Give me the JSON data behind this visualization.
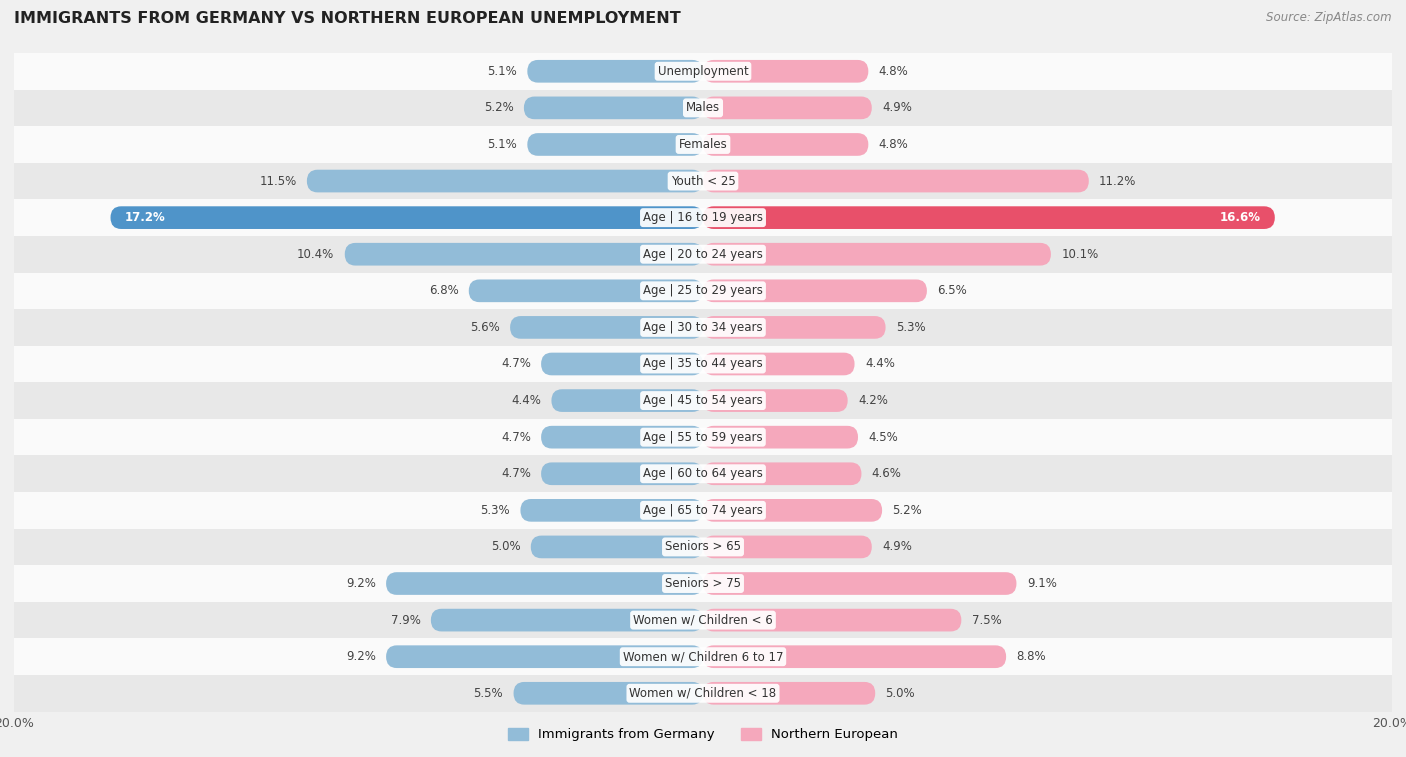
{
  "title": "IMMIGRANTS FROM GERMANY VS NORTHERN EUROPEAN UNEMPLOYMENT",
  "source": "Source: ZipAtlas.com",
  "categories": [
    "Unemployment",
    "Males",
    "Females",
    "Youth < 25",
    "Age | 16 to 19 years",
    "Age | 20 to 24 years",
    "Age | 25 to 29 years",
    "Age | 30 to 34 years",
    "Age | 35 to 44 years",
    "Age | 45 to 54 years",
    "Age | 55 to 59 years",
    "Age | 60 to 64 years",
    "Age | 65 to 74 years",
    "Seniors > 65",
    "Seniors > 75",
    "Women w/ Children < 6",
    "Women w/ Children 6 to 17",
    "Women w/ Children < 18"
  ],
  "germany_values": [
    5.1,
    5.2,
    5.1,
    11.5,
    17.2,
    10.4,
    6.8,
    5.6,
    4.7,
    4.4,
    4.7,
    4.7,
    5.3,
    5.0,
    9.2,
    7.9,
    9.2,
    5.5
  ],
  "northern_values": [
    4.8,
    4.9,
    4.8,
    11.2,
    16.6,
    10.1,
    6.5,
    5.3,
    4.4,
    4.2,
    4.5,
    4.6,
    5.2,
    4.9,
    9.1,
    7.5,
    8.8,
    5.0
  ],
  "germany_color": "#92bcd8",
  "germany_color_highlight": "#4f94c9",
  "northern_color": "#f5a8bc",
  "northern_color_highlight": "#e8506a",
  "xlim": 20,
  "background_color": "#f0f0f0",
  "row_bg_light": "#fafafa",
  "row_bg_dark": "#e8e8e8",
  "legend_germany": "Immigrants from Germany",
  "legend_northern": "Northern European"
}
